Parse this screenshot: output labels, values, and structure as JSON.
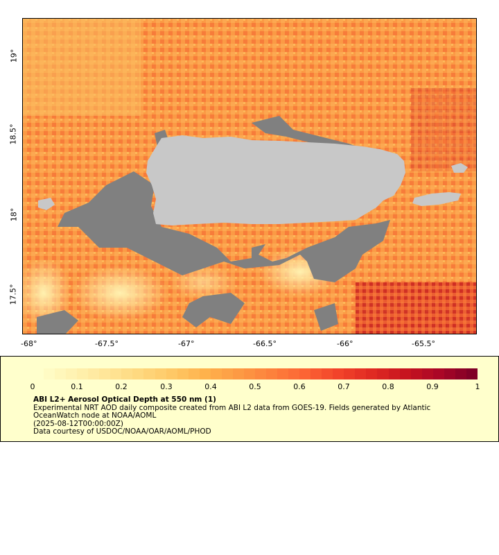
{
  "map": {
    "variable": "ABI L2+ Aerosol Optical Depth at 550 nm (1)",
    "x_axis_labels": [
      "-68°",
      "-67.5°",
      "-67°",
      "-66.5°",
      "-66°",
      "-65.5°"
    ],
    "y_axis_labels": [
      "19°",
      "18.5°",
      "18°",
      "17.5°"
    ],
    "land_color": "#c8c8c8",
    "nodata_color": "#808080"
  },
  "legend": {
    "scale_labels": [
      "0",
      "0.1",
      "0.2",
      "0.3",
      "0.4",
      "0.5",
      "0.6",
      "0.7",
      "0.8",
      "0.9",
      "1"
    ],
    "colors": [
      "#ffffcc",
      "#fff3b3",
      "#ffe699",
      "#fed980",
      "#fec866",
      "#feb24c",
      "#fd9a44",
      "#fd813c",
      "#fc6434",
      "#f2432a",
      "#e02a22",
      "#c7151f",
      "#ab0626",
      "#800026"
    ],
    "title": "ABI L2+ Aerosol Optical Depth at 550 nm (1)",
    "line1": "Experimental NRT AOD daily composite created from ABI L2 data from GOES-19. Fields generated by Atlantic OceanWatch node at NOAA/AOML",
    "line2": "(2025-08-12T00:00:00Z)",
    "line3": "Data courtesy of USDOC/NOAA/OAR/AOML/PHOD"
  }
}
